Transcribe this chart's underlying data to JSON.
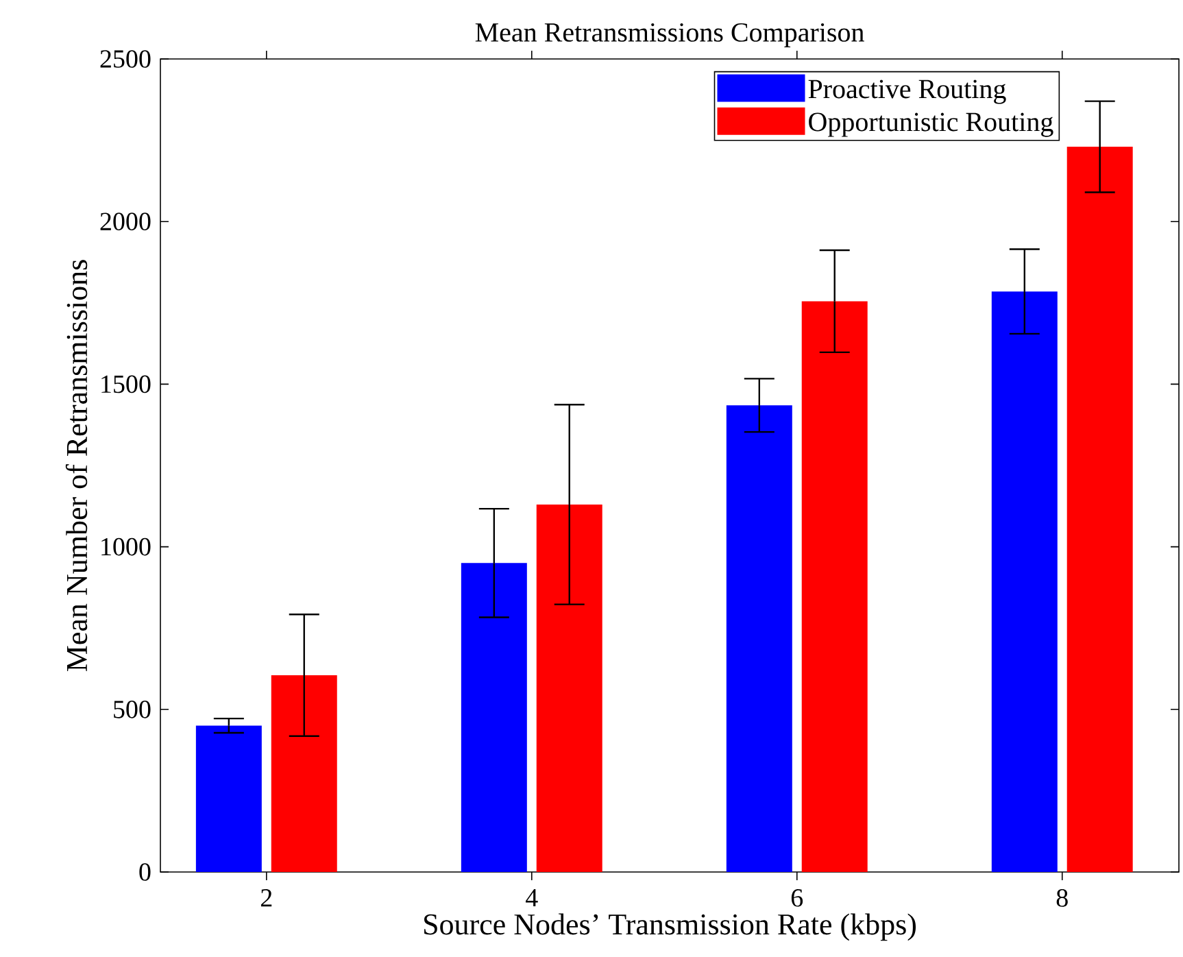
{
  "chart_data": {
    "type": "bar",
    "title": "Mean Retransmissions Comparison",
    "xlabel": "Source Nodes’ Transmission Rate (kbps)",
    "ylabel": "Mean Number of Retransmissions",
    "categories": [
      "2",
      "4",
      "6",
      "8"
    ],
    "series": [
      {
        "name": "Proactive Routing",
        "color": "#0000ff",
        "values": [
          450,
          950,
          1435,
          1785
        ],
        "errors": [
          22,
          167,
          82,
          130
        ]
      },
      {
        "name": "Opportunistic Routing",
        "color": "#ff0000",
        "values": [
          605,
          1130,
          1755,
          2230
        ],
        "errors": [
          187,
          307,
          157,
          140
        ]
      }
    ],
    "ylim": [
      0,
      2500
    ],
    "yticks": [
      0,
      500,
      1000,
      1500,
      2000,
      2500
    ],
    "grid": false,
    "legend": "top right"
  }
}
